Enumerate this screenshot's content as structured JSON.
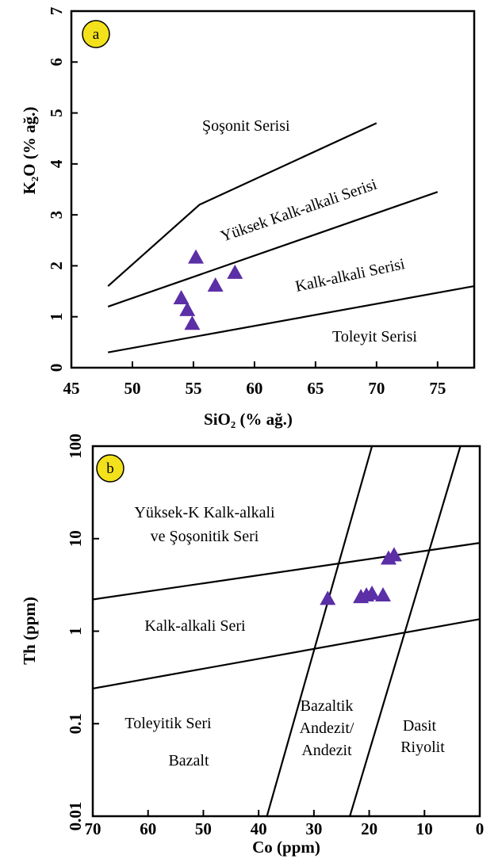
{
  "colors": {
    "marker": "#5b2fa6",
    "badge": "#f2e11b",
    "axis": "#000000"
  },
  "chart_data": [
    {
      "panel_label": "a",
      "type": "scatter",
      "xlabel": "SiO₂ (% ağ.)",
      "ylabel": "K₂O (% ağ.)",
      "xlim": [
        45,
        78
      ],
      "ylim": [
        0,
        7
      ],
      "xticks": [
        "45",
        "50",
        "55",
        "60",
        "65",
        "70",
        "75"
      ],
      "yticks": [
        "0",
        "1",
        "2",
        "3",
        "4",
        "5",
        "6",
        "7"
      ],
      "grid": false,
      "boundaries": [
        {
          "x": [
            48,
            55.5,
            70
          ],
          "y": [
            1.6,
            3.2,
            4.8
          ]
        },
        {
          "x": [
            48,
            75
          ],
          "y": [
            1.2,
            3.45
          ]
        },
        {
          "x": [
            48,
            78
          ],
          "y": [
            0.3,
            1.6
          ]
        }
      ],
      "field_labels": [
        "Şoşonit Serisi",
        "Yüksek Kalk-alkali Serisi",
        "Kalk-alkali Serisi",
        "Toleyit Serisi"
      ],
      "series": [
        {
          "marker": "triangle",
          "x": [
            55.2,
            54.0,
            54.5,
            54.9,
            56.8,
            58.4
          ],
          "y": [
            2.15,
            1.35,
            1.12,
            0.85,
            1.6,
            1.85
          ]
        }
      ]
    },
    {
      "panel_label": "b",
      "type": "scatter",
      "xlabel": "Co (ppm)",
      "ylabel": "Th (ppm)",
      "xlim": [
        70,
        0
      ],
      "ylim": [
        0.01,
        100
      ],
      "yscale": "log",
      "xticks": [
        "70",
        "60",
        "50",
        "40",
        "30",
        "20",
        "10",
        "0"
      ],
      "yticks": [
        "0.01",
        "0.1",
        "1",
        "10",
        "100"
      ],
      "grid": false,
      "boundaries": [
        {
          "x": [
            70,
            0
          ],
          "y": [
            2.2,
            9.0
          ]
        },
        {
          "x": [
            70,
            0
          ],
          "y": [
            0.24,
            1.35
          ]
        },
        {
          "x": [
            38.5,
            19.5
          ],
          "y": [
            0.01,
            100
          ]
        },
        {
          "x": [
            23.5,
            3.5
          ],
          "y": [
            0.01,
            100
          ]
        }
      ],
      "field_labels": [
        "Yüksek-K Kalk-alkali",
        "ve Şoşonitik Seri",
        "Kalk-alkali Seri",
        "Toleyitik Seri",
        "Bazalt",
        "Bazaltik",
        "Andezit/",
        "Andezit",
        "Dasit",
        "Riyolit"
      ],
      "series": [
        {
          "marker": "triangle",
          "x": [
            27.5,
            21.5,
            20.5,
            19.5,
            17.5,
            16.5,
            15.5
          ],
          "y": [
            2.2,
            2.3,
            2.4,
            2.5,
            2.4,
            6.0,
            6.5
          ]
        }
      ]
    }
  ]
}
